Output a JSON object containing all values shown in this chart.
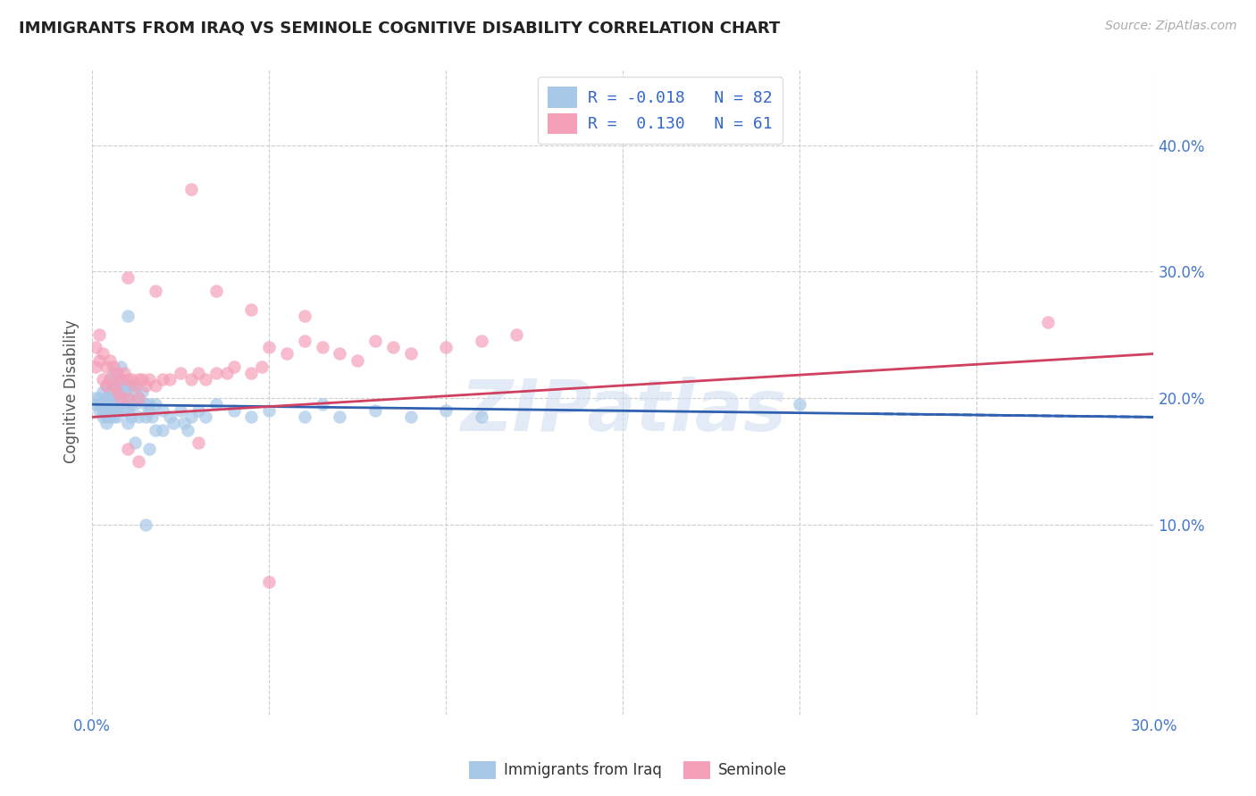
{
  "title": "IMMIGRANTS FROM IRAQ VS SEMINOLE COGNITIVE DISABILITY CORRELATION CHART",
  "source": "Source: ZipAtlas.com",
  "xlabel_blue": "Immigrants from Iraq",
  "xlabel_pink": "Seminole",
  "ylabel": "Cognitive Disability",
  "xlim": [
    0.0,
    0.3
  ],
  "ylim": [
    -0.05,
    0.46
  ],
  "xtick_positions": [
    0.0,
    0.05,
    0.1,
    0.15,
    0.2,
    0.25,
    0.3
  ],
  "xtick_labels": [
    "0.0%",
    "",
    "",
    "",
    "",
    "",
    "30.0%"
  ],
  "ytick_positions": [
    0.0,
    0.1,
    0.2,
    0.3,
    0.4
  ],
  "ytick_labels": [
    "",
    "10.0%",
    "20.0%",
    "30.0%",
    "40.0%"
  ],
  "R_blue": -0.018,
  "N_blue": 82,
  "R_pink": 0.13,
  "N_pink": 61,
  "blue_color": "#a8c8e8",
  "pink_color": "#f4a0b8",
  "trendline_blue": "#3060b0",
  "trendline_pink": "#d04060",
  "watermark": "ZIPatlas",
  "blue_scatter": [
    [
      0.001,
      0.195
    ],
    [
      0.001,
      0.2
    ],
    [
      0.002,
      0.195
    ],
    [
      0.002,
      0.19
    ],
    [
      0.002,
      0.2
    ],
    [
      0.003,
      0.205
    ],
    [
      0.003,
      0.195
    ],
    [
      0.003,
      0.19
    ],
    [
      0.003,
      0.185
    ],
    [
      0.004,
      0.21
    ],
    [
      0.004,
      0.2
    ],
    [
      0.004,
      0.195
    ],
    [
      0.004,
      0.185
    ],
    [
      0.004,
      0.18
    ],
    [
      0.005,
      0.215
    ],
    [
      0.005,
      0.205
    ],
    [
      0.005,
      0.2
    ],
    [
      0.005,
      0.195
    ],
    [
      0.005,
      0.19
    ],
    [
      0.005,
      0.185
    ],
    [
      0.006,
      0.22
    ],
    [
      0.006,
      0.21
    ],
    [
      0.006,
      0.2
    ],
    [
      0.006,
      0.195
    ],
    [
      0.006,
      0.185
    ],
    [
      0.007,
      0.215
    ],
    [
      0.007,
      0.205
    ],
    [
      0.007,
      0.195
    ],
    [
      0.007,
      0.19
    ],
    [
      0.007,
      0.185
    ],
    [
      0.008,
      0.225
    ],
    [
      0.008,
      0.215
    ],
    [
      0.008,
      0.205
    ],
    [
      0.008,
      0.195
    ],
    [
      0.009,
      0.21
    ],
    [
      0.009,
      0.2
    ],
    [
      0.009,
      0.19
    ],
    [
      0.01,
      0.265
    ],
    [
      0.01,
      0.21
    ],
    [
      0.01,
      0.2
    ],
    [
      0.01,
      0.19
    ],
    [
      0.01,
      0.18
    ],
    [
      0.011,
      0.21
    ],
    [
      0.011,
      0.195
    ],
    [
      0.011,
      0.185
    ],
    [
      0.012,
      0.205
    ],
    [
      0.012,
      0.195
    ],
    [
      0.013,
      0.2
    ],
    [
      0.013,
      0.185
    ],
    [
      0.014,
      0.205
    ],
    [
      0.015,
      0.195
    ],
    [
      0.015,
      0.185
    ],
    [
      0.016,
      0.195
    ],
    [
      0.016,
      0.19
    ],
    [
      0.017,
      0.185
    ],
    [
      0.018,
      0.195
    ],
    [
      0.018,
      0.175
    ],
    [
      0.02,
      0.19
    ],
    [
      0.02,
      0.175
    ],
    [
      0.022,
      0.185
    ],
    [
      0.023,
      0.18
    ],
    [
      0.025,
      0.19
    ],
    [
      0.026,
      0.18
    ],
    [
      0.027,
      0.175
    ],
    [
      0.028,
      0.185
    ],
    [
      0.03,
      0.19
    ],
    [
      0.032,
      0.185
    ],
    [
      0.035,
      0.195
    ],
    [
      0.04,
      0.19
    ],
    [
      0.045,
      0.185
    ],
    [
      0.05,
      0.19
    ],
    [
      0.06,
      0.185
    ],
    [
      0.065,
      0.195
    ],
    [
      0.07,
      0.185
    ],
    [
      0.08,
      0.19
    ],
    [
      0.09,
      0.185
    ],
    [
      0.1,
      0.19
    ],
    [
      0.11,
      0.185
    ],
    [
      0.2,
      0.195
    ],
    [
      0.015,
      0.1
    ],
    [
      0.012,
      0.165
    ],
    [
      0.016,
      0.16
    ]
  ],
  "pink_scatter": [
    [
      0.001,
      0.24
    ],
    [
      0.001,
      0.225
    ],
    [
      0.002,
      0.25
    ],
    [
      0.002,
      0.23
    ],
    [
      0.003,
      0.235
    ],
    [
      0.003,
      0.215
    ],
    [
      0.004,
      0.225
    ],
    [
      0.004,
      0.21
    ],
    [
      0.005,
      0.23
    ],
    [
      0.005,
      0.215
    ],
    [
      0.006,
      0.225
    ],
    [
      0.006,
      0.21
    ],
    [
      0.007,
      0.22
    ],
    [
      0.007,
      0.205
    ],
    [
      0.008,
      0.215
    ],
    [
      0.008,
      0.2
    ],
    [
      0.009,
      0.22
    ],
    [
      0.01,
      0.215
    ],
    [
      0.01,
      0.2
    ],
    [
      0.011,
      0.215
    ],
    [
      0.012,
      0.21
    ],
    [
      0.013,
      0.215
    ],
    [
      0.013,
      0.2
    ],
    [
      0.014,
      0.215
    ],
    [
      0.015,
      0.21
    ],
    [
      0.016,
      0.215
    ],
    [
      0.018,
      0.21
    ],
    [
      0.02,
      0.215
    ],
    [
      0.022,
      0.215
    ],
    [
      0.025,
      0.22
    ],
    [
      0.028,
      0.215
    ],
    [
      0.03,
      0.22
    ],
    [
      0.032,
      0.215
    ],
    [
      0.035,
      0.22
    ],
    [
      0.038,
      0.22
    ],
    [
      0.04,
      0.225
    ],
    [
      0.045,
      0.22
    ],
    [
      0.048,
      0.225
    ],
    [
      0.05,
      0.24
    ],
    [
      0.055,
      0.235
    ],
    [
      0.06,
      0.245
    ],
    [
      0.065,
      0.24
    ],
    [
      0.07,
      0.235
    ],
    [
      0.075,
      0.23
    ],
    [
      0.08,
      0.245
    ],
    [
      0.085,
      0.24
    ],
    [
      0.09,
      0.235
    ],
    [
      0.1,
      0.24
    ],
    [
      0.11,
      0.245
    ],
    [
      0.12,
      0.25
    ],
    [
      0.27,
      0.26
    ],
    [
      0.01,
      0.295
    ],
    [
      0.018,
      0.285
    ],
    [
      0.028,
      0.365
    ],
    [
      0.035,
      0.285
    ],
    [
      0.045,
      0.27
    ],
    [
      0.06,
      0.265
    ],
    [
      0.01,
      0.16
    ],
    [
      0.013,
      0.15
    ],
    [
      0.03,
      0.165
    ],
    [
      0.05,
      0.055
    ]
  ]
}
